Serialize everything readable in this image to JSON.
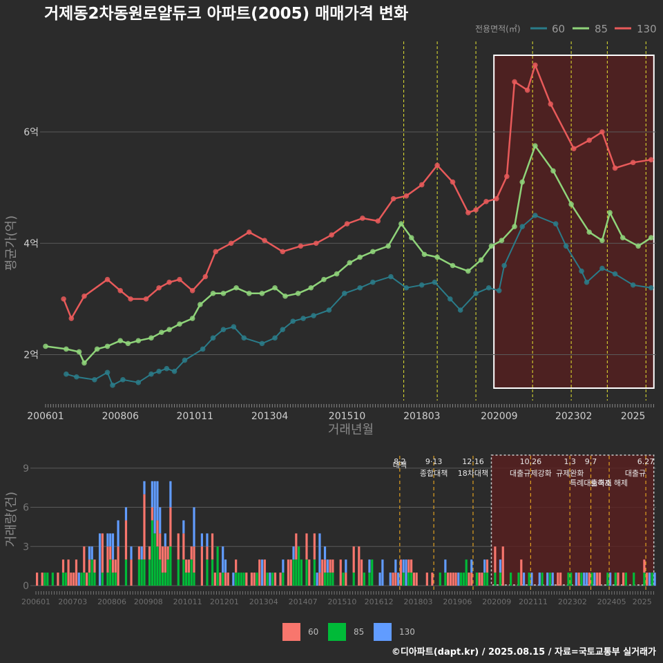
{
  "title": "거제동2차동원로얄듀크 아파트(2005) 매매가격 변화",
  "legend": {
    "title": "전용면적(㎡)",
    "items": [
      {
        "label": "60",
        "color": "#2a7c8a"
      },
      {
        "label": "85",
        "color": "#8fd47a"
      },
      {
        "label": "130",
        "color": "#e85a5a"
      }
    ]
  },
  "bottom_legend": {
    "items": [
      {
        "label": "60",
        "color": "#f8766d"
      },
      {
        "label": "85",
        "color": "#00ba38"
      },
      {
        "label": "130",
        "color": "#619cff"
      }
    ]
  },
  "footer": "©디아파트(dapt.kr) / 2025.08.15 / 자료=국토교통부 실거래가",
  "chart_data": [
    {
      "type": "line",
      "xlabel": "거래년월",
      "ylabel": "평균가(억)",
      "x_ticks": [
        "200601",
        "200806",
        "201011",
        "201304",
        "201510",
        "201803",
        "202009",
        "202302",
        "2025"
      ],
      "y_ticks": [
        "2억",
        "4억",
        "6억"
      ],
      "ylim": [
        1.2,
        7.6
      ],
      "highlight_range": [
        "2020-07",
        "2025-08"
      ],
      "policy_lines": [
        "2017-08",
        "2018-09",
        "2019-12",
        "2021-10",
        "2023-01",
        "2024-03",
        "2025-06"
      ],
      "series": [
        {
          "name": "60",
          "points": [
            [
              "2006-09",
              1.65
            ],
            [
              "2007-01",
              1.6
            ],
            [
              "2007-08",
              1.55
            ],
            [
              "2008-01",
              1.68
            ],
            [
              "2008-03",
              1.45
            ],
            [
              "2008-07",
              1.55
            ],
            [
              "2009-01",
              1.5
            ],
            [
              "2009-06",
              1.65
            ],
            [
              "2009-09",
              1.7
            ],
            [
              "2009-12",
              1.75
            ],
            [
              "2010-03",
              1.7
            ],
            [
              "2010-07",
              1.9
            ],
            [
              "2011-02",
              2.1
            ],
            [
              "2011-06",
              2.3
            ],
            [
              "2011-10",
              2.45
            ],
            [
              "2012-02",
              2.5
            ],
            [
              "2012-06",
              2.3
            ],
            [
              "2013-01",
              2.2
            ],
            [
              "2013-06",
              2.3
            ],
            [
              "2013-09",
              2.45
            ],
            [
              "2014-01",
              2.6
            ],
            [
              "2014-05",
              2.65
            ],
            [
              "2014-09",
              2.7
            ],
            [
              "2015-03",
              2.8
            ],
            [
              "2015-09",
              3.1
            ],
            [
              "2016-03",
              3.2
            ],
            [
              "2016-08",
              3.3
            ],
            [
              "2017-03",
              3.4
            ],
            [
              "2017-09",
              3.2
            ],
            [
              "2018-03",
              3.25
            ],
            [
              "2018-08",
              3.3
            ],
            [
              "2019-02",
              3.0
            ],
            [
              "2019-06",
              2.8
            ],
            [
              "2019-12",
              3.1
            ],
            [
              "2020-05",
              3.2
            ],
            [
              "2020-09",
              3.15
            ],
            [
              "2020-11",
              3.6
            ],
            [
              "2021-06",
              4.3
            ],
            [
              "2021-11",
              4.5
            ],
            [
              "2022-07",
              4.35
            ],
            [
              "2022-11",
              3.95
            ],
            [
              "2023-05",
              3.5
            ],
            [
              "2023-07",
              3.3
            ],
            [
              "2024-01",
              3.55
            ],
            [
              "2024-06",
              3.45
            ],
            [
              "2025-01",
              3.25
            ],
            [
              "2025-08",
              3.2
            ]
          ]
        },
        {
          "name": "85",
          "points": [
            [
              "2006-01",
              2.15
            ],
            [
              "2006-09",
              2.1
            ],
            [
              "2007-02",
              2.05
            ],
            [
              "2007-04",
              1.85
            ],
            [
              "2007-09",
              2.1
            ],
            [
              "2008-01",
              2.15
            ],
            [
              "2008-06",
              2.25
            ],
            [
              "2008-09",
              2.2
            ],
            [
              "2009-01",
              2.25
            ],
            [
              "2009-06",
              2.3
            ],
            [
              "2009-10",
              2.4
            ],
            [
              "2010-01",
              2.45
            ],
            [
              "2010-05",
              2.55
            ],
            [
              "2010-10",
              2.65
            ],
            [
              "2011-01",
              2.9
            ],
            [
              "2011-06",
              3.1
            ],
            [
              "2011-10",
              3.1
            ],
            [
              "2012-03",
              3.2
            ],
            [
              "2012-08",
              3.1
            ],
            [
              "2013-01",
              3.1
            ],
            [
              "2013-06",
              3.2
            ],
            [
              "2013-10",
              3.05
            ],
            [
              "2014-03",
              3.1
            ],
            [
              "2014-08",
              3.2
            ],
            [
              "2015-01",
              3.35
            ],
            [
              "2015-06",
              3.45
            ],
            [
              "2015-11",
              3.65
            ],
            [
              "2016-03",
              3.75
            ],
            [
              "2016-08",
              3.85
            ],
            [
              "2017-02",
              3.95
            ],
            [
              "2017-07",
              4.35
            ],
            [
              "2017-11",
              4.1
            ],
            [
              "2018-04",
              3.8
            ],
            [
              "2018-09",
              3.75
            ],
            [
              "2019-03",
              3.6
            ],
            [
              "2019-09",
              3.5
            ],
            [
              "2020-02",
              3.7
            ],
            [
              "2020-06",
              3.95
            ],
            [
              "2020-10",
              4.05
            ],
            [
              "2021-03",
              4.3
            ],
            [
              "2021-06",
              5.1
            ],
            [
              "2021-11",
              5.75
            ],
            [
              "2022-06",
              5.3
            ],
            [
              "2023-01",
              4.7
            ],
            [
              "2023-08",
              4.2
            ],
            [
              "2024-01",
              4.05
            ],
            [
              "2024-04",
              4.55
            ],
            [
              "2024-09",
              4.1
            ],
            [
              "2025-03",
              3.95
            ],
            [
              "2025-08",
              4.1
            ]
          ]
        },
        {
          "name": "130",
          "points": [
            [
              "2006-08",
              3.0
            ],
            [
              "2006-11",
              2.65
            ],
            [
              "2007-04",
              3.05
            ],
            [
              "2008-01",
              3.35
            ],
            [
              "2008-06",
              3.15
            ],
            [
              "2008-10",
              3.0
            ],
            [
              "2009-04",
              3.0
            ],
            [
              "2009-09",
              3.2
            ],
            [
              "2010-01",
              3.3
            ],
            [
              "2010-05",
              3.35
            ],
            [
              "2010-10",
              3.15
            ],
            [
              "2011-03",
              3.4
            ],
            [
              "2011-07",
              3.85
            ],
            [
              "2012-01",
              4.0
            ],
            [
              "2012-08",
              4.2
            ],
            [
              "2013-02",
              4.05
            ],
            [
              "2013-09",
              3.85
            ],
            [
              "2014-04",
              3.95
            ],
            [
              "2014-10",
              4.0
            ],
            [
              "2015-04",
              4.15
            ],
            [
              "2015-10",
              4.35
            ],
            [
              "2016-04",
              4.45
            ],
            [
              "2016-10",
              4.4
            ],
            [
              "2017-04",
              4.8
            ],
            [
              "2017-09",
              4.85
            ],
            [
              "2018-03",
              5.05
            ],
            [
              "2018-09",
              5.4
            ],
            [
              "2019-03",
              5.1
            ],
            [
              "2019-09",
              4.55
            ],
            [
              "2019-12",
              4.6
            ],
            [
              "2020-04",
              4.75
            ],
            [
              "2020-08",
              4.8
            ],
            [
              "2020-12",
              5.2
            ],
            [
              "2021-03",
              6.9
            ],
            [
              "2021-08",
              6.75
            ],
            [
              "2021-11",
              7.2
            ],
            [
              "2022-05",
              6.5
            ],
            [
              "2023-02",
              5.7
            ],
            [
              "2023-08",
              5.85
            ],
            [
              "2024-01",
              6.0
            ],
            [
              "2024-06",
              5.35
            ],
            [
              "2025-01",
              5.45
            ],
            [
              "2025-08",
              5.5
            ]
          ]
        }
      ]
    },
    {
      "type": "bar",
      "xlabel": "",
      "ylabel": "거래량(건)",
      "x_ticks": [
        "200601",
        "200703",
        "200806",
        "200908",
        "201011",
        "201201",
        "201304",
        "201407",
        "201510",
        "201612",
        "201803",
        "201906",
        "202009",
        "202111",
        "202302",
        "202405",
        "2025"
      ],
      "y_ticks": [
        "0",
        "3",
        "6",
        "9"
      ],
      "ylim": [
        0,
        11
      ],
      "series": [
        {
          "name": "60",
          "values": [
            0,
            0,
            0,
            0,
            0,
            0,
            0,
            0,
            1,
            0,
            0,
            0,
            0,
            0,
            1,
            0,
            0,
            0,
            0,
            3,
            0,
            1,
            1,
            0,
            0,
            2,
            0,
            0,
            0,
            0,
            0,
            1,
            0,
            0,
            1,
            0,
            0,
            0,
            0,
            0,
            1,
            0,
            0,
            0,
            0,
            1,
            3,
            0,
            0,
            1,
            0,
            0,
            0,
            0,
            0,
            0,
            0,
            0,
            0,
            0,
            0,
            0,
            0,
            0,
            0,
            0,
            0,
            0,
            0,
            0,
            0,
            0,
            0,
            0,
            0,
            0,
            1,
            0,
            0,
            1,
            0,
            0,
            0,
            0,
            0,
            0,
            0,
            0,
            0,
            0,
            0,
            0,
            0,
            0,
            0,
            0,
            0,
            0,
            0,
            0,
            0,
            0,
            0,
            0,
            0,
            0,
            0,
            0,
            0,
            0,
            0,
            0,
            0,
            0,
            0,
            0,
            0,
            0,
            0,
            0,
            0,
            0,
            0,
            1,
            2,
            0,
            0,
            3,
            0,
            2,
            0,
            0,
            0,
            0,
            0,
            0,
            0,
            0,
            0,
            0,
            0,
            0,
            0,
            0,
            0,
            0,
            0,
            0,
            0,
            0,
            0,
            0,
            0,
            0,
            0,
            0,
            0,
            0,
            0,
            0,
            0,
            0,
            0,
            0,
            0,
            0,
            0,
            0,
            0,
            0,
            0,
            0,
            0,
            0,
            0,
            0,
            0,
            0,
            0,
            0,
            0,
            0,
            0,
            0,
            0,
            0,
            0,
            0,
            0,
            0,
            0,
            0,
            0,
            0,
            0,
            0,
            0,
            0,
            0,
            0,
            0,
            0,
            0,
            0,
            0,
            0,
            0,
            0,
            0,
            0,
            0,
            0,
            0,
            0,
            0,
            0,
            0,
            0,
            0,
            0,
            0,
            0,
            0,
            0,
            0,
            0,
            0,
            0,
            0,
            0,
            0,
            0,
            0,
            0,
            0,
            0,
            0,
            0,
            0,
            0,
            0,
            0,
            0,
            0,
            0,
            0,
            0,
            0,
            0,
            0,
            0,
            0,
            0,
            0,
            0,
            0,
            0,
            0,
            0,
            0,
            0,
            0,
            0,
            0,
            0,
            0,
            0,
            0,
            0,
            0,
            0,
            0,
            0,
            0,
            0,
            0,
            0,
            0,
            0,
            0,
            0,
            0,
            0,
            0,
            0,
            0,
            0,
            0,
            0,
            0,
            0,
            0,
            0,
            0,
            0,
            0,
            0
          ]
        },
        {
          "name": "85",
          "values": [
            0
          ]
        },
        {
          "name": "130",
          "values": [
            0
          ]
        }
      ],
      "bar_note": "monthly stacked volume; approx heights generated from volume_profile",
      "volume_profile": [
        [
          2006.0,
          0.5
        ],
        [
          2007.0,
          1.5
        ],
        [
          2007.6,
          2.5
        ],
        [
          2008.3,
          3.5
        ],
        [
          2009.0,
          5.0
        ],
        [
          2009.6,
          7.0
        ],
        [
          2010.2,
          5.5
        ],
        [
          2010.8,
          5.0
        ],
        [
          2011.5,
          3.0
        ],
        [
          2012.3,
          1.5
        ],
        [
          2013.0,
          1.5
        ],
        [
          2013.7,
          2.0
        ],
        [
          2014.2,
          4.0
        ],
        [
          2014.7,
          3.5
        ],
        [
          2015.3,
          2.5
        ],
        [
          2016.0,
          2.0
        ],
        [
          2016.8,
          1.5
        ],
        [
          2017.5,
          1.5
        ],
        [
          2018.2,
          1.5
        ],
        [
          2018.8,
          1.5
        ],
        [
          2019.5,
          1.0
        ],
        [
          2020.2,
          1.5
        ],
        [
          2020.7,
          2.5
        ],
        [
          2021.0,
          1.5
        ],
        [
          2021.8,
          1.0
        ],
        [
          2022.5,
          0.5
        ],
        [
          2023.2,
          1.0
        ],
        [
          2023.8,
          1.0
        ],
        [
          2024.5,
          1.0
        ],
        [
          2025.0,
          1.5
        ],
        [
          2025.6,
          1.0
        ]
      ],
      "policy_markers": [
        {
          "x": "2017-08",
          "date": "8·2",
          "label": "대책"
        },
        {
          "x": "2018-09",
          "date": "9·13",
          "label": "종합대책"
        },
        {
          "x": "2019-12",
          "date": "12·16",
          "label": "18차대책"
        },
        {
          "x": "2021-10",
          "date": "10.26",
          "label": "대출규제강화"
        },
        {
          "x": "2023-01",
          "date": "1.3",
          "label": "규제완화"
        },
        {
          "x": "2023-09",
          "date": "9.7",
          "label": "특례대출축소"
        },
        {
          "x": "2024-04",
          "date": "",
          "label": "토허제 해제"
        },
        {
          "x": "2025-06",
          "date": "6.27",
          "label": "대출규"
        }
      ]
    }
  ]
}
